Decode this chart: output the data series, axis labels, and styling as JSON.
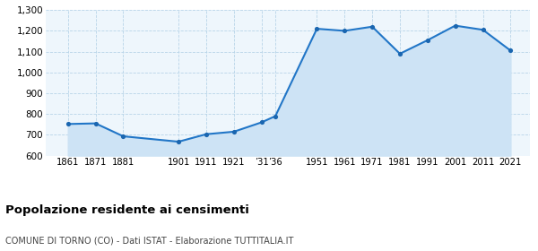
{
  "years": [
    1861,
    1871,
    1881,
    1901,
    1911,
    1921,
    1931,
    1936,
    1951,
    1961,
    1971,
    1981,
    1991,
    2001,
    2011,
    2021
  ],
  "population": [
    752,
    755,
    693,
    667,
    703,
    715,
    760,
    790,
    1210,
    1200,
    1220,
    1090,
    1155,
    1225,
    1205,
    1105
  ],
  "xtick_positions": [
    1861,
    1871,
    1881,
    1901,
    1911,
    1921,
    1931,
    1936,
    1951,
    1961,
    1971,
    1981,
    1991,
    2001,
    2011,
    2021
  ],
  "xtick_labels": [
    "1861",
    "1871",
    "1881",
    "1901",
    "1911",
    "1921",
    "’31",
    "’36",
    "1951",
    "1961",
    "1971",
    "1981",
    "1991",
    "2001",
    "2011",
    "2021"
  ],
  "line_color": "#2176c7",
  "fill_color": "#cde3f5",
  "marker_color": "#1a66b0",
  "background_color": "#eef6fc",
  "grid_color": "#b8d4e8",
  "title": "Popolazione residente ai censimenti",
  "subtitle": "COMUNE DI TORNO (CO) - Dati ISTAT - Elaborazione TUTTITALIA.IT",
  "ylim": [
    600,
    1300
  ],
  "yticks": [
    600,
    700,
    800,
    900,
    1000,
    1100,
    1200,
    1300
  ],
  "xlim": [
    1853,
    2028
  ]
}
